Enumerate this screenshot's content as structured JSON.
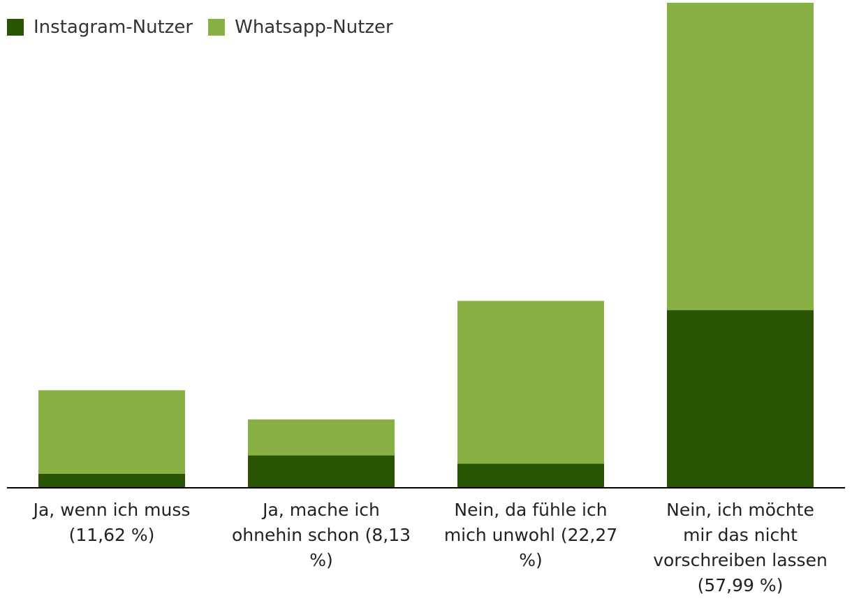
{
  "chart_data": {
    "type": "bar",
    "stacked": true,
    "categories": [
      "Ja, wenn ich muss (11,62 %)",
      "Ja, mache ich ohnehin schon (8,13 %)",
      "Nein, da fühle ich mich unwohl (22,27 %)",
      "Nein, ich möchte mir das nicht vorschreiben lassen (57,99 %)"
    ],
    "series": [
      {
        "name": "Instagram-Nutzer",
        "color": "#285404",
        "values": [
          1.6,
          3.8,
          2.8,
          21.2
        ]
      },
      {
        "name": "Whatsapp-Nutzer",
        "color": "#88b042",
        "values": [
          10.0,
          4.3,
          19.5,
          36.8
        ]
      }
    ],
    "ylim": [
      0,
      60
    ],
    "grid": false,
    "legend_position": "top-left",
    "title": "",
    "xlabel": "",
    "ylabel": ""
  }
}
